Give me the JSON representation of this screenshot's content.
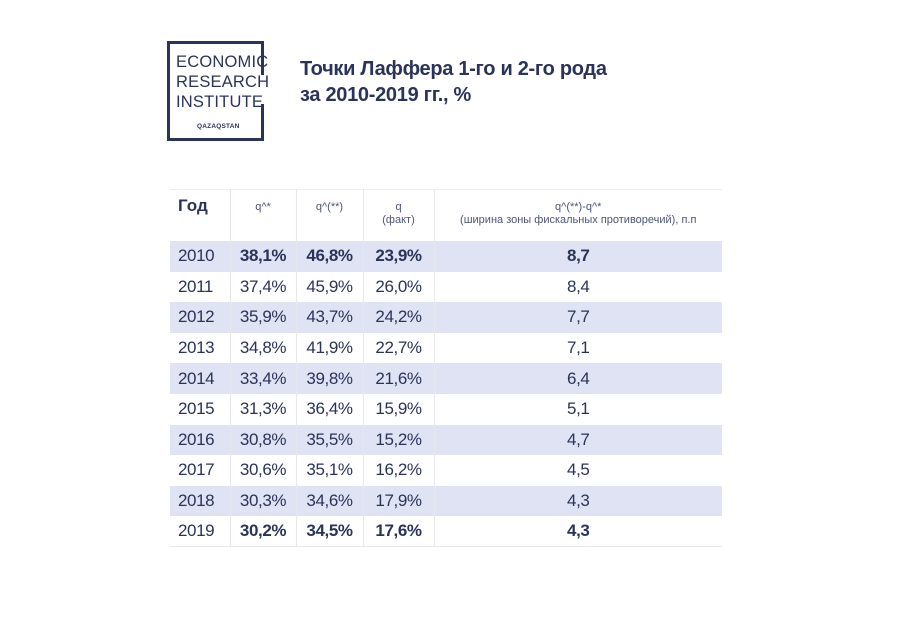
{
  "logo": {
    "line1": "ECONOMIC",
    "line2": "RESEARCH",
    "line3": "INSTITUTE",
    "sub": "QAZAQSTAN"
  },
  "title": {
    "line1": "Точки Лаффера 1-го и 2-го рода",
    "line2": "за 2010-2019 гг., %"
  },
  "table": {
    "headers": {
      "year": "Год",
      "q1": "q^*",
      "q2": "q^(**)",
      "q_line1": "q",
      "q_line2": "(факт)",
      "diff_line1": "q^(**)-q^*",
      "diff_line2": "(ширина зоны фискальных противоречий), п.п"
    },
    "rows": [
      {
        "year": "2010",
        "q1": "38,1%",
        "q2": "46,8%",
        "q": "23,9%",
        "diff": "8,7"
      },
      {
        "year": "2011",
        "q1": "37,4%",
        "q2": "45,9%",
        "q": "26,0%",
        "diff": "8,4"
      },
      {
        "year": "2012",
        "q1": "35,9%",
        "q2": "43,7%",
        "q": "24,2%",
        "diff": "7,7"
      },
      {
        "year": "2013",
        "q1": "34,8%",
        "q2": "41,9%",
        "q": "22,7%",
        "diff": "7,1"
      },
      {
        "year": "2014",
        "q1": "33,4%",
        "q2": "39,8%",
        "q": "21,6%",
        "diff": "6,4"
      },
      {
        "year": "2015",
        "q1": "31,3%",
        "q2": "36,4%",
        "q": "15,9%",
        "diff": "5,1"
      },
      {
        "year": "2016",
        "q1": "30,8%",
        "q2": "35,5%",
        "q": "15,2%",
        "diff": "4,7"
      },
      {
        "year": "2017",
        "q1": "30,6%",
        "q2": "35,1%",
        "q": "16,2%",
        "diff": "4,5"
      },
      {
        "year": "2018",
        "q1": "30,3%",
        "q2": "34,6%",
        "q": "17,9%",
        "diff": "4,3"
      },
      {
        "year": "2019",
        "q1": "30,2%",
        "q2": "34,5%",
        "q": "17,6%",
        "diff": "4,3"
      }
    ]
  }
}
